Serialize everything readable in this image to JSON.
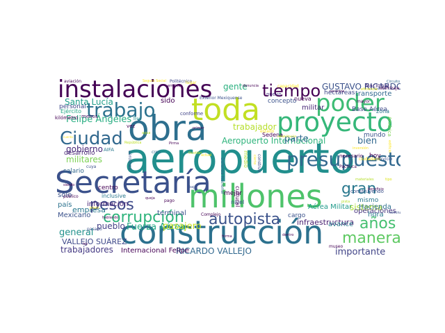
{
  "wordcloud": {
    "words": [
      {
        "text": "aeropuerto",
        "color": "#218f8d"
      },
      {
        "text": "obra",
        "color": "#2d6f8e"
      },
      {
        "text": "toda",
        "color": "#c2df23"
      },
      {
        "text": "construcción",
        "color": "#2c718e"
      },
      {
        "text": "Secretaría",
        "color": "#3b518b"
      },
      {
        "text": "millones",
        "color": "#4ec36b"
      },
      {
        "text": "proyecto",
        "color": "#35b779"
      },
      {
        "text": "instalaciones",
        "color": "#440154"
      },
      {
        "text": "presupuesto",
        "color": "#31688e"
      },
      {
        "text": "poder",
        "color": "#3dbc74"
      },
      {
        "text": "trabajo",
        "color": "#2c728e"
      },
      {
        "text": "Ciudad",
        "color": "#31688e"
      },
      {
        "text": "tiempo",
        "color": "#440154"
      },
      {
        "text": "pesos",
        "color": "#3e4a89"
      },
      {
        "text": "autopista",
        "color": "#3b528b"
      },
      {
        "text": "corrupción",
        "color": "#2fb47c"
      },
      {
        "text": "gran",
        "color": "#2a788e"
      },
      {
        "text": "años",
        "color": "#44bf70"
      },
      {
        "text": "manera",
        "color": "#5ec962"
      },
      {
        "text": "Aeropuerto Internacional",
        "color": "#2fb47c"
      },
      {
        "text": "Felipe Ángeles",
        "color": "#27ad81"
      },
      {
        "text": "GUSTAVO RICARDO",
        "color": "#3b528b"
      },
      {
        "text": "Fuerza Aérea",
        "color": "#22a884"
      },
      {
        "text": "RICARDO VALLEJO",
        "color": "#31688e"
      },
      {
        "text": "VALLEJO SUÁREZ",
        "color": "#3e4989"
      },
      {
        "text": "trabajadores",
        "color": "#443983"
      },
      {
        "text": "general",
        "color": "#21918c"
      },
      {
        "text": "militares",
        "color": "#7ad151"
      },
      {
        "text": "gobierno",
        "color": "#482878"
      },
      {
        "text": "pueblo",
        "color": "#433e85"
      },
      {
        "text": "importante",
        "color": "#414487"
      },
      {
        "text": "bien",
        "color": "#31688e"
      },
      {
        "text": "parte",
        "color": "#31688e"
      },
      {
        "text": "gente",
        "color": "#2ab07f"
      },
      {
        "text": "Santa Lucía",
        "color": "#1f9e89"
      },
      {
        "text": "trabajador",
        "color": "#b5de2b"
      },
      {
        "text": "sido",
        "color": "#440154"
      },
      {
        "text": "militar",
        "color": "#482677"
      },
      {
        "text": "transporte",
        "color": "#31688e"
      },
      {
        "text": "hectáreas",
        "color": "#3e4989"
      },
      {
        "text": "Base Aérea",
        "color": "#3f4788"
      },
      {
        "text": "hoy",
        "color": "#440154"
      },
      {
        "text": "Aérea Militar",
        "color": "#1f9a8a"
      },
      {
        "text": "sistema",
        "color": "#a8db34"
      },
      {
        "text": "hora",
        "color": "#2a788e"
      },
      {
        "text": "pasajero",
        "color": "#c8e020"
      },
      {
        "text": "terminal",
        "color": "#3b528b"
      },
      {
        "text": "infraestructura",
        "color": "#482071"
      },
      {
        "text": "avance",
        "color": "#287c8e"
      },
      {
        "text": "operaciones",
        "color": "#46337e"
      },
      {
        "text": "Hacienda",
        "color": "#2d708e"
      },
      {
        "text": "mismo",
        "color": "#2a778e"
      },
      {
        "text": "información",
        "color": "#482475"
      },
      {
        "text": "Internacional Felipe",
        "color": "#440154"
      },
      {
        "text": "Mexicano",
        "color": "#3b528b"
      },
      {
        "text": "país",
        "color": "#2c728e"
      },
      {
        "text": "sólo",
        "color": "#3b528b"
      },
      {
        "text": "salario",
        "color": "#31688e"
      },
      {
        "text": "desarrollo",
        "color": "#482475"
      },
      {
        "text": "personal",
        "color": "#3e4989"
      },
      {
        "text": "Ejército",
        "color": "#22a884"
      },
      {
        "text": "kilómetro",
        "color": "#440154"
      },
      {
        "text": "menos",
        "color": "#471365"
      },
      {
        "text": "aviación",
        "color": "#440154"
      },
      {
        "text": "Seguro Social",
        "color": "#fde725"
      },
      {
        "text": "Politécnico",
        "color": "#3e4989"
      },
      {
        "text": "concepto",
        "color": "#3b528b"
      },
      {
        "text": "nuevo",
        "color": "#472d7b"
      },
      {
        "text": "nueva",
        "color": "#440154"
      },
      {
        "text": "mundo",
        "color": "#3b528b"
      },
      {
        "text": "Sedena",
        "color": "#440154"
      },
      {
        "text": "América",
        "color": "#7ad151"
      },
      {
        "text": "zona",
        "color": "#2a788e"
      },
      {
        "text": "Nacional",
        "color": "#472c7a"
      },
      {
        "text": "mejor",
        "color": "#440154"
      },
      {
        "text": "nivel",
        "color": "#3b528b"
      },
      {
        "text": "medio",
        "color": "#addc30"
      },
      {
        "text": "cultural",
        "color": "#440154"
      },
      {
        "text": "construyendo",
        "color": "#3b528b"
      },
      {
        "text": "empresa",
        "color": "#2a788e"
      },
      {
        "text": "inclusive",
        "color": "#2a788e"
      },
      {
        "text": "centro",
        "color": "#440154"
      },
      {
        "text": "pago",
        "color": "#440154"
      },
      {
        "text": "conforme",
        "color": "#414487"
      },
      {
        "text": "necesario",
        "color": "#440154"
      },
      {
        "text": "Pachuca",
        "color": "#440154"
      },
      {
        "text": "construir",
        "color": "#414487"
      },
      {
        "text": "aerolínea",
        "color": "#3b528b"
      },
      {
        "text": "AIFA",
        "color": "#2a788e"
      },
      {
        "text": "público",
        "color": "#440154"
      },
      {
        "text": "siendo",
        "color": "#440154"
      },
      {
        "text": "hablando",
        "color": "#440154"
      },
      {
        "text": "empleo",
        "color": "#440154"
      },
      {
        "text": "denuncia",
        "color": "#440154"
      },
      {
        "text": "aterrizaje",
        "color": "#440154"
      },
      {
        "text": "mayor",
        "color": "#440154"
      },
      {
        "text": "recursos",
        "color": "#440154"
      },
      {
        "text": "Circuito Exterior",
        "color": "#31688e"
      },
      {
        "text": "Exterior Mexiquense",
        "color": "#3b528b"
      },
      {
        "text": "Defensa Nacional",
        "color": "#31688e"
      },
      {
        "text": "Complejo",
        "color": "#440154"
      },
      {
        "text": "beneficio",
        "color": "#440154"
      },
      {
        "text": "museo",
        "color": "#440154"
      },
      {
        "text": "dentro",
        "color": "#440154"
      },
      {
        "text": "ley",
        "color": "#440154"
      },
      {
        "text": "forma",
        "color": "#440154"
      },
      {
        "text": "queja",
        "color": "#440154"
      },
      {
        "text": "pista",
        "color": "#b5de2b"
      },
      {
        "text": "cargo",
        "color": "#3b528b"
      },
      {
        "text": "pasado",
        "color": "#3b528b"
      },
      {
        "text": "cuya",
        "color": "#3b528b"
      },
      {
        "text": "creo",
        "color": "#31688e"
      },
      {
        "text": "Tren",
        "color": "#21918c"
      },
      {
        "text": "vez",
        "color": "#440154"
      },
      {
        "text": "primer",
        "color": "#440154"
      },
      {
        "text": "República",
        "color": "#bddf26"
      },
      {
        "text": "capacidad",
        "color": "#fde725"
      },
      {
        "text": "plazo",
        "color": "#fde725"
      },
      {
        "text": "Pirma",
        "color": "#440154"
      },
      {
        "text": "nómina",
        "color": "#3b528b"
      },
      {
        "text": "bajo",
        "color": "#3b528b"
      },
      {
        "text": "cierto",
        "color": "#fde725"
      },
      {
        "text": "Ocotlán",
        "color": "#c2df23"
      },
      {
        "text": "estado",
        "color": "#fde725"
      },
      {
        "text": "eficiencia",
        "color": "#dde318"
      },
      {
        "text": "materiales",
        "color": "#b5de2b"
      },
      {
        "text": "edificio",
        "color": "#fde725"
      },
      {
        "text": "servicio",
        "color": "#3b528b"
      },
      {
        "text": "lugar",
        "color": "#fde725"
      },
      {
        "text": "ciudadano",
        "color": "#fde725"
      },
      {
        "text": "inversión",
        "color": "#fde725"
      },
      {
        "text": "agua",
        "color": "#b5de2b"
      },
      {
        "text": "tipo",
        "color": "#dde318"
      },
      {
        "text": "actual",
        "color": "#fde725"
      },
      {
        "text": "rehabilitación",
        "color": "#d8e219"
      },
      {
        "text": "cuenta",
        "color": "#fde725"
      }
    ]
  }
}
